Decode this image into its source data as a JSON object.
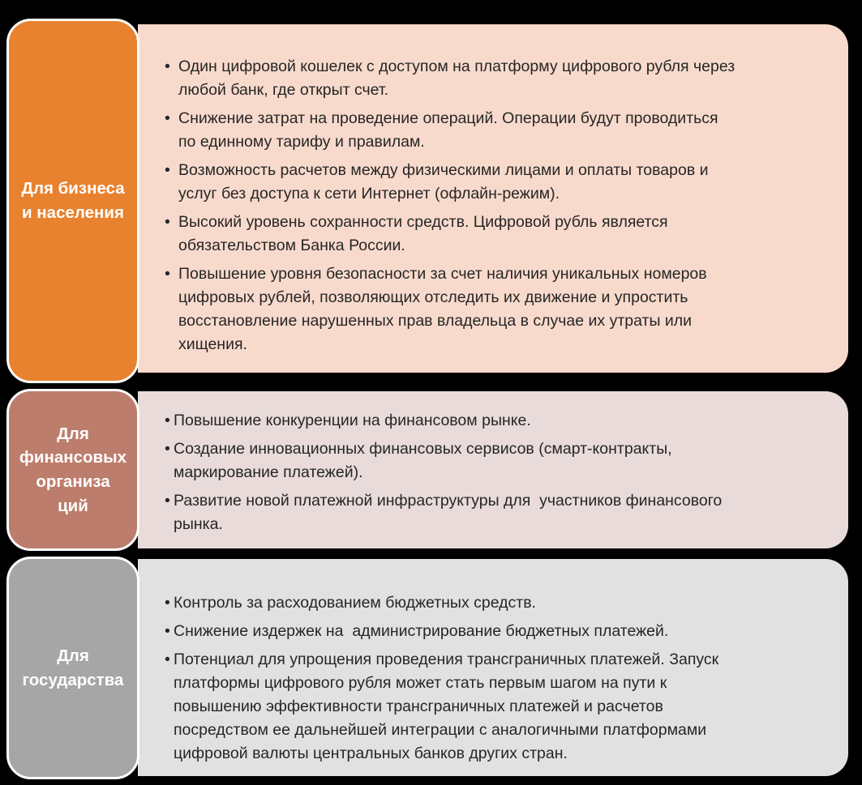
{
  "bullet_char": "•",
  "colors": {
    "background": "#000000",
    "label_text": "#FFFFFF",
    "body_text": "#262626",
    "section1_label_bg": "#E8822F",
    "section1_body_bg": "#F8DACC",
    "section2_label_bg": "#BD7D6C",
    "section2_body_bg": "#E8DBDA",
    "section3_label_bg": "#A6A6A6",
    "section3_body_bg": "#E1E1E1",
    "label_outline": "#FFFFFF"
  },
  "sections": [
    {
      "label": "Для бизнеса\nи населения",
      "bullets": [
        "Один цифровой кошелек с доступом на платформу цифрового рубля через\nлюбой банк, где открыт счет.",
        "Снижение затрат на проведение операций. Операции будут проводиться\nпо единному тарифу и правилам.",
        "Возможность расчетов между физическими лицами и оплаты товаров и\nуслуг без доступа к сети Интернет (офлайн-режим).",
        "Высокий уровень сохранности средств. Цифровой рубль является\nобязательством Банка России.",
        "Повышение уровня безопасности за счет наличия уникальных номеров\nцифровых рублей, позволяющих отследить их движение и упростить\nвосстановление нарушенных прав владельца в случае их утраты или\nхищения."
      ]
    },
    {
      "label": "Для\nфинансовых\nорганиза\nций",
      "bullets": [
        "Повышение конкуренции на финансовом рынке.",
        "Создание инновационных финансовых сервисов (смарт-контракты,\nмаркирование платежей).",
        "Развитие новой платежной инфраструктуры для  участников финансового\nрынка."
      ]
    },
    {
      "label": "Для\nгосударства",
      "bullets": [
        "Контроль за расходованием бюджетных средств.",
        "Снижение издержек на  администрирование бюджетных платежей.",
        "Потенциал для упрощения проведения трансграничных платежей. Запуск\nплатформы цифрового рубля может стать первым шагом на пути к\nповышению эффективности трансграничных платежей и расчетов\nпосредством ее дальнейшей интеграции с аналогичными платформами\nцифровой валюты центральных банков других стран."
      ]
    }
  ]
}
